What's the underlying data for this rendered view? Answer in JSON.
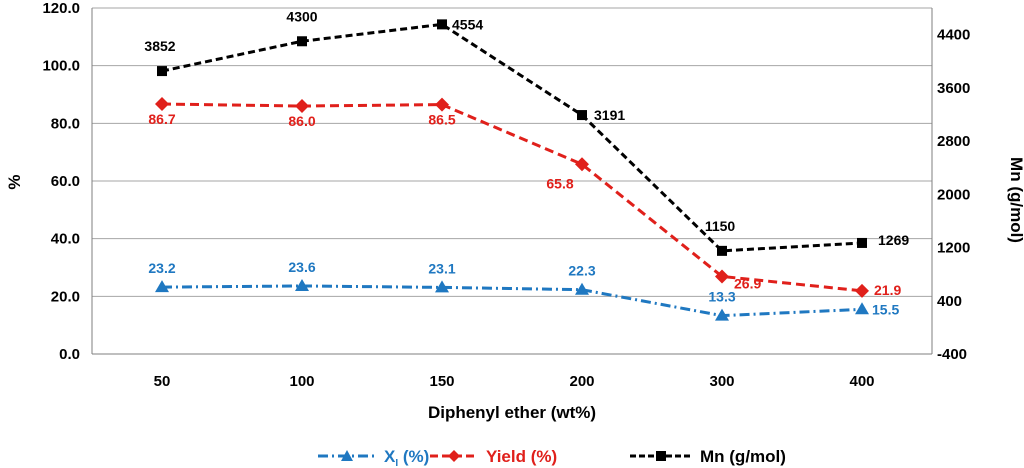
{
  "chart_data": {
    "type": "line",
    "title": "",
    "xlabel": "Diphenyl ether (wt%)",
    "ylabel": "%",
    "y2label": "Mn (g/mol)",
    "categories": [
      "50",
      "100",
      "150",
      "200",
      "300",
      "400"
    ],
    "ylim": [
      0,
      120
    ],
    "yticks": [
      "0.0",
      "20.0",
      "40.0",
      "60.0",
      "80.0",
      "100.0",
      "120.0"
    ],
    "y2lim": [
      -400,
      4800
    ],
    "y2ticks": [
      "-400",
      "400",
      "1200",
      "2000",
      "2800",
      "3600",
      "4400"
    ],
    "grid": true,
    "legend_position": "bottom",
    "series": [
      {
        "name": "Xi",
        "legend_main": "X",
        "legend_sub": "I",
        "legend_tail": " (%)",
        "axis": "left",
        "color": "#1f78c1",
        "marker": "triangle",
        "values": [
          23.2,
          23.6,
          23.1,
          22.3,
          13.3,
          15.5
        ],
        "labels": [
          "23.2",
          "23.6",
          "23.1",
          "22.3",
          "13.3",
          "15.5"
        ]
      },
      {
        "name": "Yield (%)",
        "axis": "left",
        "color": "#e0201b",
        "marker": "diamond",
        "values": [
          86.7,
          86.0,
          86.5,
          65.8,
          26.9,
          21.9
        ],
        "labels": [
          "86.7",
          "86.0",
          "86.5",
          "65.8",
          "26.9",
          "21.9"
        ]
      },
      {
        "name": "Mn (g/mol)",
        "axis": "right",
        "color": "#000000",
        "marker": "square",
        "values": [
          3852,
          4300,
          4554,
          3191,
          1150,
          1269
        ],
        "labels": [
          "3852",
          "4300",
          "4554",
          "3191",
          "1150",
          "1269"
        ]
      }
    ]
  }
}
